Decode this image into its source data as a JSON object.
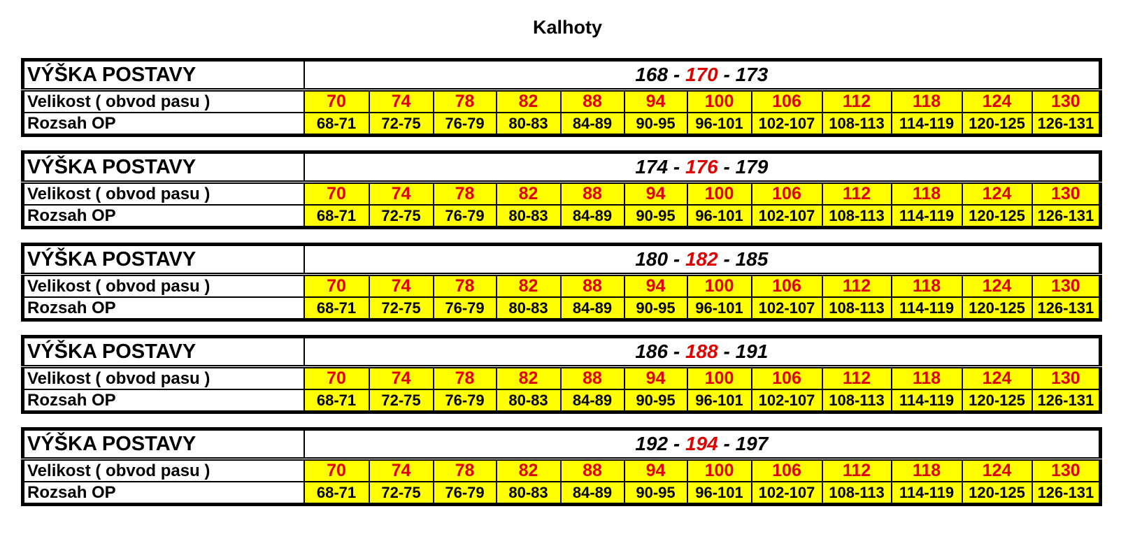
{
  "title": "Kalhoty",
  "labels": {
    "height": "VÝŠKA POSTAVY",
    "size": "Velikost ( obvod pasu )",
    "range": "Rozsah OP"
  },
  "colors": {
    "highlight": "#ffff00",
    "accent_red": "#e00000"
  },
  "sizes": [
    "70",
    "74",
    "78",
    "82",
    "88",
    "94",
    "100",
    "106",
    "112",
    "118",
    "124",
    "130"
  ],
  "ranges": [
    "68-71",
    "72-75",
    "76-79",
    "80-83",
    "84-89",
    "90-95",
    "96-101",
    "102-107",
    "108-113",
    "114-119",
    "120-125",
    "126-131"
  ],
  "tables": [
    {
      "low": "168",
      "mid": "170",
      "high": "173"
    },
    {
      "low": "174",
      "mid": "176",
      "high": "179"
    },
    {
      "low": "180",
      "mid": "182",
      "high": "185"
    },
    {
      "low": "186",
      "mid": "188",
      "high": "191"
    },
    {
      "low": "192",
      "mid": "194",
      "high": "197"
    }
  ]
}
